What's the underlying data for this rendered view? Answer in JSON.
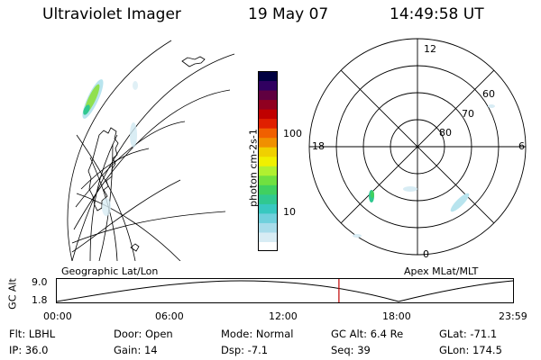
{
  "header": {
    "title": "Ultraviolet Imager",
    "date": "19 May 07",
    "time": "14:49:58 UT"
  },
  "colorbar": {
    "label": "photon cm-2s-1",
    "ticks": [
      {
        "label": "100",
        "value": 100
      },
      {
        "label": "10",
        "value": 10
      }
    ],
    "colors": [
      "#ffffff",
      "#d8ecf4",
      "#a8dcea",
      "#70d0dc",
      "#38c8c0",
      "#30c890",
      "#40d060",
      "#70e040",
      "#b0f030",
      "#f0f000",
      "#f0d000",
      "#f09000",
      "#f06000",
      "#e02000",
      "#c00000",
      "#900020",
      "#600040",
      "#300060",
      "#000040"
    ]
  },
  "left_map": {
    "caption": "Geographic Lat/Lon"
  },
  "right_map": {
    "caption": "Apex MLat/MLT",
    "hour_labels": {
      "top": "12",
      "left": "18",
      "right": "6",
      "bottom": "0"
    },
    "lat_labels": [
      "60",
      "70",
      "80"
    ]
  },
  "timeline": {
    "ylabel": "GC Alt",
    "y_top": "9.0",
    "y_bottom": "1.8",
    "x_labels": [
      "00:00",
      "06:00",
      "12:00",
      "18:00",
      "23:59"
    ],
    "current_time_hours": 14.83,
    "marker_color": "#c00000"
  },
  "footer": {
    "flt": "Flt: LBHL",
    "ip": "IP: 36.0",
    "door": "Door: Open",
    "gain": "Gain: 14",
    "mode": "Mode: Normal",
    "dsp": "Dsp:    -7.1",
    "gcalt": "GC Alt: 6.4 Re",
    "seq": "Seq: 39",
    "glat": "GLat: -71.1",
    "glon": "GLon: 174.5"
  }
}
